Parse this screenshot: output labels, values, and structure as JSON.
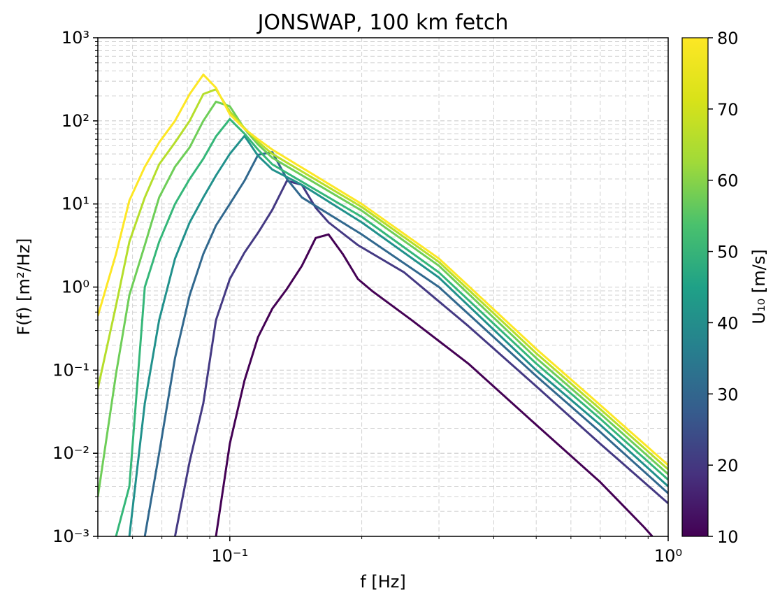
{
  "chart_data": {
    "type": "line",
    "title": "JONSWAP, 100 km fetch",
    "xlabel": "f [Hz]",
    "ylabel": "F(f) [m²/Hz]",
    "x_scale": "log",
    "y_scale": "log",
    "xlim": [
      0.05,
      1.0
    ],
    "ylim": [
      0.001,
      1000
    ],
    "x_ticks": [
      {
        "value": 0.1,
        "label": "10⁻¹"
      },
      {
        "value": 1,
        "label": "10⁰"
      }
    ],
    "y_ticks": [
      {
        "value": 0.001,
        "label": "10⁻³"
      },
      {
        "value": 0.01,
        "label": "10⁻²"
      },
      {
        "value": 0.1,
        "label": "10⁻¹"
      },
      {
        "value": 1,
        "label": "10⁰"
      },
      {
        "value": 10,
        "label": "10¹"
      },
      {
        "value": 100,
        "label": "10²"
      },
      {
        "value": 1000,
        "label": "10³"
      }
    ],
    "grid": true,
    "colorbar": {
      "label": "U₁₀ [m/s]",
      "colormap": "viridis",
      "min": 10,
      "max": 80,
      "ticks": [
        10,
        20,
        30,
        40,
        50,
        60,
        70,
        80
      ]
    },
    "series": [
      {
        "color_value": 10,
        "color": "#440154",
        "points": [
          [
            0.093,
            0.001
          ],
          [
            0.1,
            0.013
          ],
          [
            0.108,
            0.075
          ],
          [
            0.116,
            0.25
          ],
          [
            0.125,
            0.55
          ],
          [
            0.135,
            0.95
          ],
          [
            0.146,
            1.8
          ],
          [
            0.157,
            3.9
          ],
          [
            0.168,
            4.3
          ],
          [
            0.181,
            2.5
          ],
          [
            0.196,
            1.25
          ],
          [
            0.211,
            0.9
          ],
          [
            0.26,
            0.4
          ],
          [
            0.35,
            0.12
          ],
          [
            0.5,
            0.022
          ],
          [
            0.7,
            0.0045
          ],
          [
            0.88,
            0.0013
          ],
          [
            0.92,
            0.001
          ]
        ]
      },
      {
        "color_value": 20,
        "color": "#443983",
        "points": [
          [
            0.075,
            0.001
          ],
          [
            0.081,
            0.008
          ],
          [
            0.087,
            0.04
          ],
          [
            0.093,
            0.4
          ],
          [
            0.1,
            1.25
          ],
          [
            0.108,
            2.6
          ],
          [
            0.116,
            4.5
          ],
          [
            0.125,
            8.5
          ],
          [
            0.135,
            19
          ],
          [
            0.146,
            17
          ],
          [
            0.157,
            9
          ],
          [
            0.168,
            6
          ],
          [
            0.196,
            3.2
          ],
          [
            0.25,
            1.5
          ],
          [
            0.35,
            0.34
          ],
          [
            0.5,
            0.064
          ],
          [
            0.7,
            0.013
          ],
          [
            1.0,
            0.0025
          ]
        ]
      },
      {
        "color_value": 30,
        "color": "#31688e",
        "points": [
          [
            0.064,
            0.001
          ],
          [
            0.069,
            0.01
          ],
          [
            0.075,
            0.14
          ],
          [
            0.081,
            0.8
          ],
          [
            0.087,
            2.5
          ],
          [
            0.093,
            5.5
          ],
          [
            0.1,
            10
          ],
          [
            0.108,
            19
          ],
          [
            0.116,
            39
          ],
          [
            0.125,
            42
          ],
          [
            0.135,
            20
          ],
          [
            0.146,
            12
          ],
          [
            0.2,
            4.3
          ],
          [
            0.3,
            1
          ],
          [
            0.5,
            0.085
          ],
          [
            0.7,
            0.018
          ],
          [
            1.0,
            0.0033
          ]
        ]
      },
      {
        "color_value": 40,
        "color": "#21918c",
        "points": [
          [
            0.059,
            0.001
          ],
          [
            0.064,
            0.04
          ],
          [
            0.069,
            0.4
          ],
          [
            0.075,
            2.2
          ],
          [
            0.081,
            6
          ],
          [
            0.087,
            12
          ],
          [
            0.093,
            22
          ],
          [
            0.1,
            40
          ],
          [
            0.108,
            66
          ],
          [
            0.116,
            38
          ],
          [
            0.125,
            26
          ],
          [
            0.146,
            17
          ],
          [
            0.2,
            6
          ],
          [
            0.3,
            1.3
          ],
          [
            0.5,
            0.1
          ],
          [
            0.7,
            0.022
          ],
          [
            1.0,
            0.004
          ]
        ]
      },
      {
        "color_value": 50,
        "color": "#35b779",
        "points": [
          [
            0.055,
            0.001
          ],
          [
            0.059,
            0.004
          ],
          [
            0.064,
            1.0
          ],
          [
            0.069,
            3.5
          ],
          [
            0.075,
            10
          ],
          [
            0.081,
            20
          ],
          [
            0.087,
            35
          ],
          [
            0.093,
            65
          ],
          [
            0.1,
            105
          ],
          [
            0.108,
            70
          ],
          [
            0.116,
            45
          ],
          [
            0.125,
            30
          ],
          [
            0.2,
            7
          ],
          [
            0.3,
            1.5
          ],
          [
            0.5,
            0.12
          ],
          [
            0.7,
            0.026
          ],
          [
            1.0,
            0.0048
          ]
        ]
      },
      {
        "color_value": 60,
        "color": "#6ece58",
        "points": [
          [
            0.05,
            0.003
          ],
          [
            0.055,
            0.09
          ],
          [
            0.059,
            0.8
          ],
          [
            0.064,
            3.2
          ],
          [
            0.069,
            12
          ],
          [
            0.075,
            28
          ],
          [
            0.081,
            48
          ],
          [
            0.087,
            100
          ],
          [
            0.093,
            170
          ],
          [
            0.1,
            150
          ],
          [
            0.108,
            80
          ],
          [
            0.116,
            52
          ],
          [
            0.125,
            36
          ],
          [
            0.2,
            8.3
          ],
          [
            0.3,
            1.8
          ],
          [
            0.5,
            0.14
          ],
          [
            0.7,
            0.03
          ],
          [
            1.0,
            0.0056
          ]
        ]
      },
      {
        "color_value": 70,
        "color": "#b5de2b",
        "points": [
          [
            0.05,
            0.06
          ],
          [
            0.055,
            0.6
          ],
          [
            0.059,
            3.5
          ],
          [
            0.064,
            12
          ],
          [
            0.069,
            30
          ],
          [
            0.075,
            55
          ],
          [
            0.081,
            100
          ],
          [
            0.087,
            210
          ],
          [
            0.093,
            240
          ],
          [
            0.1,
            130
          ],
          [
            0.108,
            82
          ],
          [
            0.116,
            56
          ],
          [
            0.125,
            40
          ],
          [
            0.2,
            9.2
          ],
          [
            0.3,
            2
          ],
          [
            0.5,
            0.16
          ],
          [
            0.7,
            0.034
          ],
          [
            1.0,
            0.0064
          ]
        ]
      },
      {
        "color_value": 80,
        "color": "#fde725",
        "points": [
          [
            0.05,
            0.45
          ],
          [
            0.055,
            2.5
          ],
          [
            0.059,
            11
          ],
          [
            0.064,
            28
          ],
          [
            0.069,
            55
          ],
          [
            0.075,
            100
          ],
          [
            0.081,
            210
          ],
          [
            0.087,
            360
          ],
          [
            0.093,
            250
          ],
          [
            0.1,
            120
          ],
          [
            0.108,
            80
          ],
          [
            0.116,
            60
          ],
          [
            0.125,
            45
          ],
          [
            0.2,
            10
          ],
          [
            0.3,
            2.2
          ],
          [
            0.5,
            0.18
          ],
          [
            0.7,
            0.038
          ],
          [
            1.0,
            0.0072
          ]
        ]
      }
    ]
  }
}
